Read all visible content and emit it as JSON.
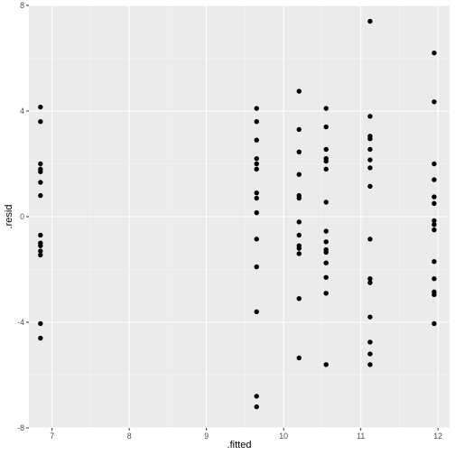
{
  "chart_data": {
    "type": "scatter",
    "title": "",
    "xlabel": ".fitted",
    "ylabel": ".resid",
    "xlim": [
      6.7,
      12.15
    ],
    "ylim": [
      -8,
      8
    ],
    "x_ticks": [
      7,
      8,
      9,
      10,
      11,
      12
    ],
    "y_ticks": [
      -8,
      -4,
      0,
      4,
      8
    ],
    "x_tick_labels": [
      "7",
      "8",
      "9",
      "10",
      "11",
      "12"
    ],
    "y_tick_labels": [
      "-8",
      "-4",
      "0",
      "4",
      "8"
    ],
    "grid": true,
    "points": [
      {
        "x": 6.85,
        "y": 4.15
      },
      {
        "x": 6.85,
        "y": 3.6
      },
      {
        "x": 6.85,
        "y": 2.0
      },
      {
        "x": 6.85,
        "y": 1.8
      },
      {
        "x": 6.85,
        "y": 1.7
      },
      {
        "x": 6.85,
        "y": 1.3
      },
      {
        "x": 6.85,
        "y": 0.8
      },
      {
        "x": 6.85,
        "y": -0.7
      },
      {
        "x": 6.85,
        "y": -1.0
      },
      {
        "x": 6.85,
        "y": -1.1
      },
      {
        "x": 6.85,
        "y": -1.3
      },
      {
        "x": 6.85,
        "y": -1.45
      },
      {
        "x": 6.85,
        "y": -4.05
      },
      {
        "x": 6.85,
        "y": -4.6
      },
      {
        "x": 9.65,
        "y": 4.1
      },
      {
        "x": 9.65,
        "y": 3.6
      },
      {
        "x": 9.65,
        "y": 2.9
      },
      {
        "x": 9.65,
        "y": 2.2
      },
      {
        "x": 9.65,
        "y": 2.0
      },
      {
        "x": 9.65,
        "y": 1.8
      },
      {
        "x": 9.65,
        "y": 0.9
      },
      {
        "x": 9.65,
        "y": 0.7
      },
      {
        "x": 9.65,
        "y": 0.15
      },
      {
        "x": 9.65,
        "y": -0.85
      },
      {
        "x": 9.65,
        "y": -1.9
      },
      {
        "x": 9.65,
        "y": -3.6
      },
      {
        "x": 9.65,
        "y": -6.8
      },
      {
        "x": 9.65,
        "y": -7.2
      },
      {
        "x": 10.2,
        "y": 4.75
      },
      {
        "x": 10.2,
        "y": 3.3
      },
      {
        "x": 10.2,
        "y": 2.45
      },
      {
        "x": 10.2,
        "y": 1.6
      },
      {
        "x": 10.2,
        "y": 0.8
      },
      {
        "x": 10.2,
        "y": 0.7
      },
      {
        "x": 10.2,
        "y": -0.2
      },
      {
        "x": 10.2,
        "y": -0.7
      },
      {
        "x": 10.2,
        "y": -1.1
      },
      {
        "x": 10.2,
        "y": -1.2
      },
      {
        "x": 10.2,
        "y": -1.4
      },
      {
        "x": 10.2,
        "y": -3.1
      },
      {
        "x": 10.2,
        "y": -5.35
      },
      {
        "x": 10.55,
        "y": 4.1
      },
      {
        "x": 10.55,
        "y": 3.4
      },
      {
        "x": 10.55,
        "y": 2.55
      },
      {
        "x": 10.55,
        "y": 2.2
      },
      {
        "x": 10.55,
        "y": 2.1
      },
      {
        "x": 10.55,
        "y": 1.8
      },
      {
        "x": 10.55,
        "y": 0.55
      },
      {
        "x": 10.55,
        "y": -0.55
      },
      {
        "x": 10.55,
        "y": -0.95
      },
      {
        "x": 10.55,
        "y": -1.25
      },
      {
        "x": 10.55,
        "y": -1.35
      },
      {
        "x": 10.55,
        "y": -1.75
      },
      {
        "x": 10.55,
        "y": -2.3
      },
      {
        "x": 10.55,
        "y": -2.9
      },
      {
        "x": 10.55,
        "y": -5.6
      },
      {
        "x": 11.12,
        "y": 7.4
      },
      {
        "x": 11.12,
        "y": 3.8
      },
      {
        "x": 11.12,
        "y": 3.05
      },
      {
        "x": 11.12,
        "y": 2.95
      },
      {
        "x": 11.12,
        "y": 2.55
      },
      {
        "x": 11.12,
        "y": 2.15
      },
      {
        "x": 11.12,
        "y": 1.85
      },
      {
        "x": 11.12,
        "y": 1.15
      },
      {
        "x": 11.12,
        "y": -0.85
      },
      {
        "x": 11.12,
        "y": -2.35
      },
      {
        "x": 11.12,
        "y": -2.5
      },
      {
        "x": 11.12,
        "y": -3.8
      },
      {
        "x": 11.12,
        "y": -4.75
      },
      {
        "x": 11.12,
        "y": -5.2
      },
      {
        "x": 11.12,
        "y": -5.6
      },
      {
        "x": 11.95,
        "y": 6.2
      },
      {
        "x": 11.95,
        "y": 4.35
      },
      {
        "x": 11.95,
        "y": 2.0
      },
      {
        "x": 11.95,
        "y": 1.4
      },
      {
        "x": 11.95,
        "y": 0.75
      },
      {
        "x": 11.95,
        "y": 0.5
      },
      {
        "x": 11.95,
        "y": -0.15
      },
      {
        "x": 11.95,
        "y": -0.3
      },
      {
        "x": 11.95,
        "y": -0.5
      },
      {
        "x": 11.95,
        "y": -1.7
      },
      {
        "x": 11.95,
        "y": -2.35
      },
      {
        "x": 11.95,
        "y": -2.85
      },
      {
        "x": 11.95,
        "y": -2.95
      },
      {
        "x": 11.95,
        "y": -4.05
      }
    ],
    "colors": {
      "panel": "#ebebeb",
      "grid_major": "#ffffff",
      "grid_minor": "#f5f5f5",
      "point": "#000000",
      "tick": "#333333",
      "tick_label": "#4d4d4d",
      "title": "#000000"
    }
  }
}
